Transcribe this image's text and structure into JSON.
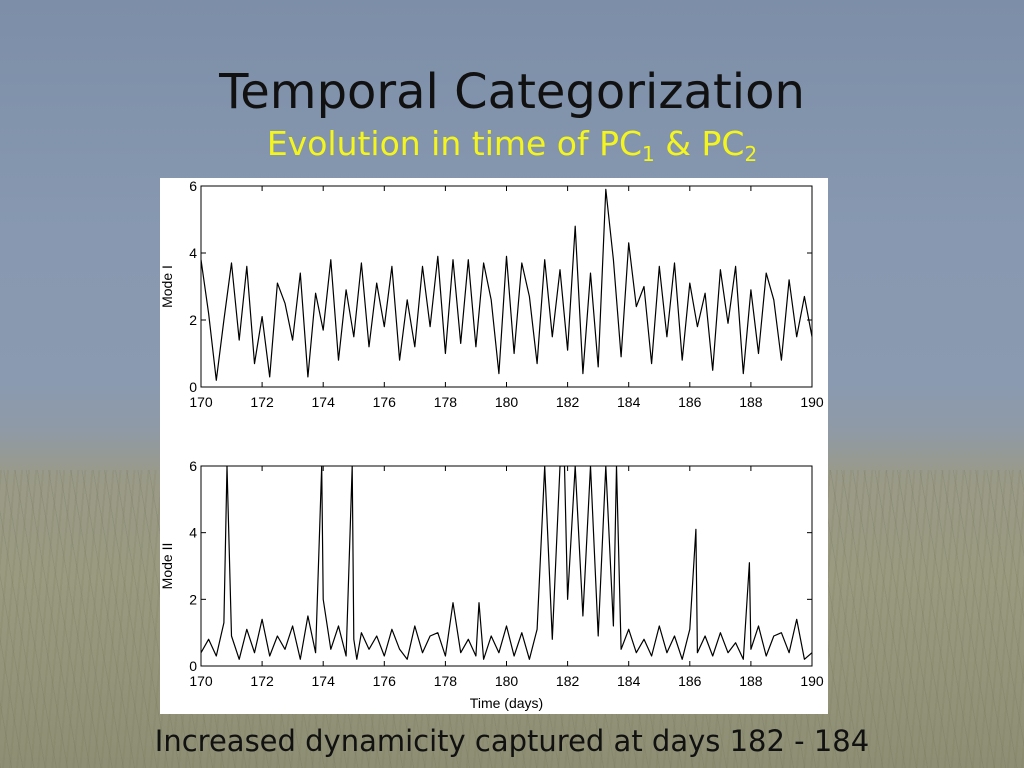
{
  "slide": {
    "title": "Temporal Categorization",
    "subtitle_prefix": "Evolution in time of PC",
    "subtitle_sub1": "1",
    "subtitle_mid": " & PC",
    "subtitle_sub2": "2",
    "caption": "Increased dynamicity captured at days 182 - 184"
  },
  "chart_data": [
    {
      "type": "line",
      "title": "",
      "xlabel": "",
      "ylabel": "Mode I",
      "xlim": [
        170,
        190
      ],
      "ylim": [
        0,
        6
      ],
      "xticks": [
        170,
        172,
        174,
        176,
        178,
        180,
        182,
        184,
        186,
        188,
        190
      ],
      "yticks": [
        0,
        2,
        4,
        6
      ],
      "grid": false,
      "series": [
        {
          "x": [
            170.0,
            170.25,
            170.5,
            170.75,
            171.0,
            171.25,
            171.5,
            171.75,
            172.0,
            172.25,
            172.5,
            172.75,
            173.0,
            173.25,
            173.5,
            173.75,
            174.0,
            174.25,
            174.5,
            174.75,
            175.0,
            175.25,
            175.5,
            175.75,
            176.0,
            176.25,
            176.5,
            176.75,
            177.0,
            177.25,
            177.5,
            177.75,
            178.0,
            178.25,
            178.5,
            178.75,
            179.0,
            179.25,
            179.5,
            179.75,
            180.0,
            180.25,
            180.5,
            180.75,
            181.0,
            181.25,
            181.5,
            181.75,
            182.0,
            182.25,
            182.5,
            182.75,
            183.0,
            183.25,
            183.5,
            183.75,
            184.0,
            184.25,
            184.5,
            184.75,
            185.0,
            185.25,
            185.5,
            185.75,
            186.0,
            186.25,
            186.5,
            186.75,
            187.0,
            187.25,
            187.5,
            187.75,
            188.0,
            188.25,
            188.5,
            188.75,
            189.0,
            189.25,
            189.5,
            189.75,
            190.0
          ],
          "values": [
            3.8,
            2.2,
            0.2,
            2.0,
            3.7,
            1.4,
            3.6,
            0.7,
            2.1,
            0.3,
            3.1,
            2.5,
            1.4,
            3.4,
            0.3,
            2.8,
            1.7,
            3.8,
            0.8,
            2.9,
            1.5,
            3.7,
            1.2,
            3.1,
            1.8,
            3.6,
            0.8,
            2.6,
            1.2,
            3.6,
            1.8,
            3.9,
            1.0,
            3.8,
            1.3,
            3.8,
            1.2,
            3.7,
            2.6,
            0.4,
            3.9,
            1.0,
            3.7,
            2.7,
            0.7,
            3.8,
            1.5,
            3.5,
            1.1,
            4.8,
            0.4,
            3.4,
            0.6,
            5.9,
            3.8,
            0.9,
            4.3,
            2.4,
            3.0,
            0.7,
            3.6,
            1.5,
            3.7,
            0.8,
            3.1,
            1.8,
            2.8,
            0.5,
            3.5,
            1.9,
            3.6,
            0.4,
            2.9,
            1.0,
            3.4,
            2.6,
            0.8,
            3.2,
            1.5,
            2.7,
            1.5
          ]
        }
      ]
    },
    {
      "type": "line",
      "title": "",
      "xlabel": "Time (days)",
      "ylabel": "Mode II",
      "xlim": [
        170,
        190
      ],
      "ylim": [
        0,
        6
      ],
      "xticks": [
        170,
        172,
        174,
        176,
        178,
        180,
        182,
        184,
        186,
        188,
        190
      ],
      "yticks": [
        0,
        2,
        4,
        6
      ],
      "grid": false,
      "series": [
        {
          "x": [
            170.0,
            170.25,
            170.5,
            170.75,
            170.85,
            171.0,
            171.25,
            171.5,
            171.75,
            172.0,
            172.25,
            172.5,
            172.75,
            173.0,
            173.25,
            173.5,
            173.75,
            173.95,
            174.0,
            174.25,
            174.5,
            174.75,
            174.95,
            175.0,
            175.1,
            175.25,
            175.5,
            175.75,
            176.0,
            176.25,
            176.5,
            176.75,
            177.0,
            177.25,
            177.5,
            177.75,
            178.0,
            178.25,
            178.5,
            178.75,
            179.0,
            179.1,
            179.25,
            179.5,
            179.75,
            180.0,
            180.25,
            180.5,
            180.75,
            181.0,
            181.25,
            181.5,
            181.75,
            181.9,
            182.0,
            182.25,
            182.5,
            182.75,
            183.0,
            183.25,
            183.5,
            183.6,
            183.75,
            184.0,
            184.25,
            184.5,
            184.75,
            185.0,
            185.25,
            185.5,
            185.75,
            186.0,
            186.2,
            186.25,
            186.5,
            186.75,
            187.0,
            187.25,
            187.5,
            187.75,
            187.95,
            188.0,
            188.25,
            188.5,
            188.75,
            189.0,
            189.25,
            189.5,
            189.75,
            190.0
          ],
          "values": [
            0.4,
            0.8,
            0.3,
            1.3,
            6.0,
            0.9,
            0.2,
            1.1,
            0.4,
            1.4,
            0.3,
            0.9,
            0.5,
            1.2,
            0.2,
            1.5,
            0.4,
            6.0,
            2.0,
            0.5,
            1.2,
            0.3,
            6.0,
            0.8,
            0.2,
            1.0,
            0.5,
            0.9,
            0.3,
            1.1,
            0.5,
            0.2,
            1.2,
            0.4,
            0.9,
            1.0,
            0.3,
            1.9,
            0.4,
            0.8,
            0.3,
            1.9,
            0.2,
            0.9,
            0.4,
            1.2,
            0.3,
            1.0,
            0.2,
            1.1,
            6.0,
            0.8,
            6.0,
            6.0,
            2.0,
            6.0,
            1.5,
            6.0,
            0.9,
            6.0,
            1.2,
            6.0,
            0.5,
            1.1,
            0.4,
            0.8,
            0.3,
            1.2,
            0.4,
            0.9,
            0.2,
            1.1,
            4.1,
            0.4,
            0.9,
            0.3,
            1.0,
            0.4,
            0.7,
            0.2,
            3.1,
            0.5,
            1.2,
            0.3,
            0.9,
            1.0,
            0.4,
            1.4,
            0.2,
            0.4
          ]
        }
      ]
    }
  ]
}
